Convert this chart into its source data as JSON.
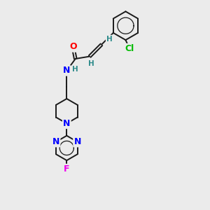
{
  "bg_color": "#ebebeb",
  "bond_color": "#1a1a1a",
  "atom_colors": {
    "O": "#ff0000",
    "N": "#0000ff",
    "Cl": "#00bb00",
    "F": "#ee00ee",
    "H": "#2e8b8b",
    "C": "#1a1a1a"
  },
  "font_size": 8.5,
  "bond_width": 1.4,
  "figsize": [
    3.0,
    3.0
  ],
  "dpi": 100
}
